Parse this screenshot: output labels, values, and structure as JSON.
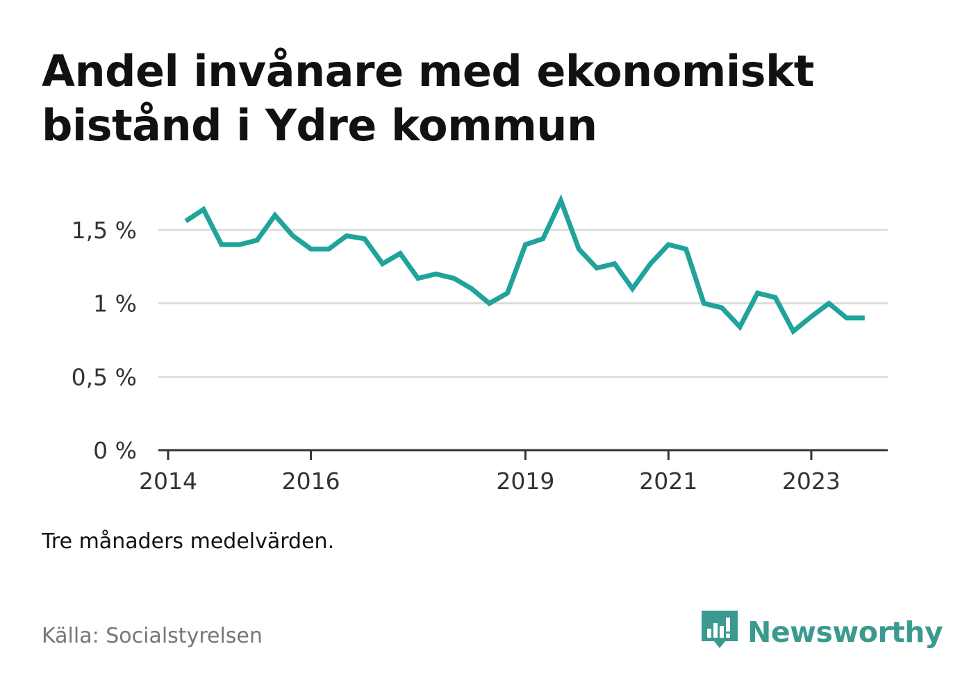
{
  "title": "Andel invånare med ekonomiskt bistånd i Ydre kommun",
  "note": "Tre månaders medelvärden.",
  "source": "Källa: Socialstyrelsen",
  "brand": {
    "name": "Newsworthy",
    "icon": "newsworthy-logo-icon",
    "color": "#3a9a8f"
  },
  "colors": {
    "line": "#1fa39a",
    "grid": "#dddddd",
    "axis": "#333333"
  },
  "chart_data": {
    "type": "line",
    "title": "Andel invånare med ekonomiskt bistånd i Ydre kommun",
    "xlabel": "",
    "ylabel": "",
    "y_unit": "%",
    "ylim": [
      0,
      1.7
    ],
    "yticks": [
      {
        "value": 0,
        "label": "0 %"
      },
      {
        "value": 0.5,
        "label": "0,5 %"
      },
      {
        "value": 1,
        "label": "1 %"
      },
      {
        "value": 1.5,
        "label": "1,5 %"
      }
    ],
    "xlim": [
      "2014-01-01",
      "2024-01-01"
    ],
    "xticks": [
      {
        "value": "2014-01-01",
        "label": "2014"
      },
      {
        "value": "2016-01-01",
        "label": "2016"
      },
      {
        "value": "2019-01-01",
        "label": "2019"
      },
      {
        "value": "2021-01-01",
        "label": "2021"
      },
      {
        "value": "2023-01-01",
        "label": "2023"
      }
    ],
    "grid": true,
    "series": [
      {
        "x": [
          "2014-04-01",
          "2014-07-01",
          "2014-10-01",
          "2015-01-01",
          "2015-04-01",
          "2015-07-01",
          "2015-10-01",
          "2016-01-01",
          "2016-04-01",
          "2016-07-01",
          "2016-10-01",
          "2017-01-01",
          "2017-04-01",
          "2017-07-01",
          "2017-10-01",
          "2018-01-01",
          "2018-04-01",
          "2018-07-01",
          "2018-10-01",
          "2019-01-01",
          "2019-04-01",
          "2019-07-01",
          "2019-10-01",
          "2020-01-01",
          "2020-04-01",
          "2020-07-01",
          "2020-10-01",
          "2021-01-01",
          "2021-04-01",
          "2021-07-01",
          "2021-10-01",
          "2022-01-01",
          "2022-04-01",
          "2022-07-01",
          "2022-10-01",
          "2023-01-01",
          "2023-04-01",
          "2023-07-01",
          "2023-10-01"
        ],
        "values": [
          1.56,
          1.64,
          1.4,
          1.4,
          1.43,
          1.6,
          1.46,
          1.37,
          1.37,
          1.46,
          1.44,
          1.27,
          1.34,
          1.17,
          1.2,
          1.17,
          1.1,
          1.0,
          1.07,
          1.4,
          1.44,
          1.7,
          1.37,
          1.24,
          1.27,
          1.1,
          1.27,
          1.4,
          1.37,
          1.0,
          0.97,
          0.84,
          1.07,
          1.04,
          0.81,
          0.91,
          1.0,
          0.9,
          0.9
        ]
      }
    ]
  }
}
